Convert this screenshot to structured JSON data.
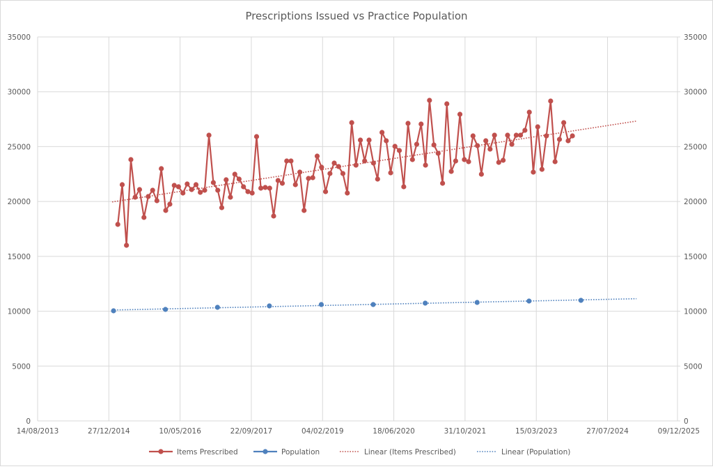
{
  "chart_data": {
    "type": "line",
    "title": "Prescriptions Issued vs Practice Population",
    "xlabel": "",
    "ylabel": "",
    "y2label": "",
    "x_type": "date",
    "xlim": [
      "2013-08-14",
      "2025-12-09"
    ],
    "x_tick_labels": [
      "14/08/2013",
      "27/12/2014",
      "10/05/2016",
      "22/09/2017",
      "04/02/2019",
      "18/06/2020",
      "31/10/2021",
      "15/03/2023",
      "27/07/2024",
      "09/12/2025"
    ],
    "x_tick_step_days": 501,
    "ylim": [
      0,
      35000
    ],
    "y_ticks": [
      0,
      5000,
      10000,
      15000,
      20000,
      25000,
      30000,
      35000
    ],
    "y_tick_labels": [
      "0",
      "5000",
      "10000",
      "15000",
      "20000",
      "25000",
      "30000",
      "35000"
    ],
    "y2lim": [
      0,
      35000
    ],
    "y2_tick_labels": [
      "0",
      "5000",
      "10000",
      "15000",
      "20000",
      "25000",
      "30000",
      "35000"
    ],
    "grid": true,
    "legend_position": "bottom",
    "series": [
      {
        "name": "Items Prescribed",
        "color": "#c0504d",
        "style": "line-markers",
        "start_date": "2015-03-01",
        "interval": "month",
        "values": [
          17913,
          21533,
          16007,
          23820,
          20390,
          21089,
          18548,
          20453,
          21025,
          20072,
          22994,
          19183,
          19755,
          21470,
          21343,
          20771,
          21597,
          21089,
          21533,
          20835,
          21025,
          26043,
          21724,
          21025,
          19437,
          21978,
          20390,
          22486,
          22041,
          21343,
          20898,
          20771,
          25916,
          21216,
          21279,
          21216,
          18675,
          21914,
          21660,
          23693,
          23693,
          21533,
          22677,
          19183,
          22105,
          22168,
          24138,
          23121,
          20898,
          22550,
          23502,
          23185,
          22550,
          20771,
          27187,
          23312,
          25599,
          23693,
          25599,
          23502,
          22041,
          26297,
          25535,
          22613,
          25027,
          24646,
          21343,
          27123,
          23820,
          25218,
          27060,
          23312,
          29219,
          25154,
          24392,
          21660,
          28902,
          22740,
          23693,
          27949,
          23820,
          23629,
          25980,
          25090,
          22486,
          25535,
          24773,
          26043,
          23566,
          23756,
          26043,
          25218,
          26043,
          26043,
          26488,
          28139,
          22677,
          26805,
          22931,
          25980,
          29156,
          23629,
          25662,
          27187,
          25535,
          25980
        ]
      },
      {
        "name": "Population",
        "color": "#4f81bd",
        "style": "markers",
        "start_date": "2015-01-30",
        "interval": "year",
        "values": [
          10036,
          10163,
          10354,
          10481,
          10608,
          10608,
          10735,
          10798,
          10925,
          10989
        ]
      }
    ],
    "trendlines": [
      {
        "name": "Linear (Items Prescribed)",
        "of": "Items Prescribed",
        "type": "linear",
        "color": "#c0504d",
        "start_date": "2015-01-20",
        "end_date": "2025-02-24"
      },
      {
        "name": "Linear (Population)",
        "of": "Population",
        "type": "linear",
        "color": "#4f81bd",
        "start_date": "2015-01-20",
        "end_date": "2025-02-24"
      }
    ]
  }
}
